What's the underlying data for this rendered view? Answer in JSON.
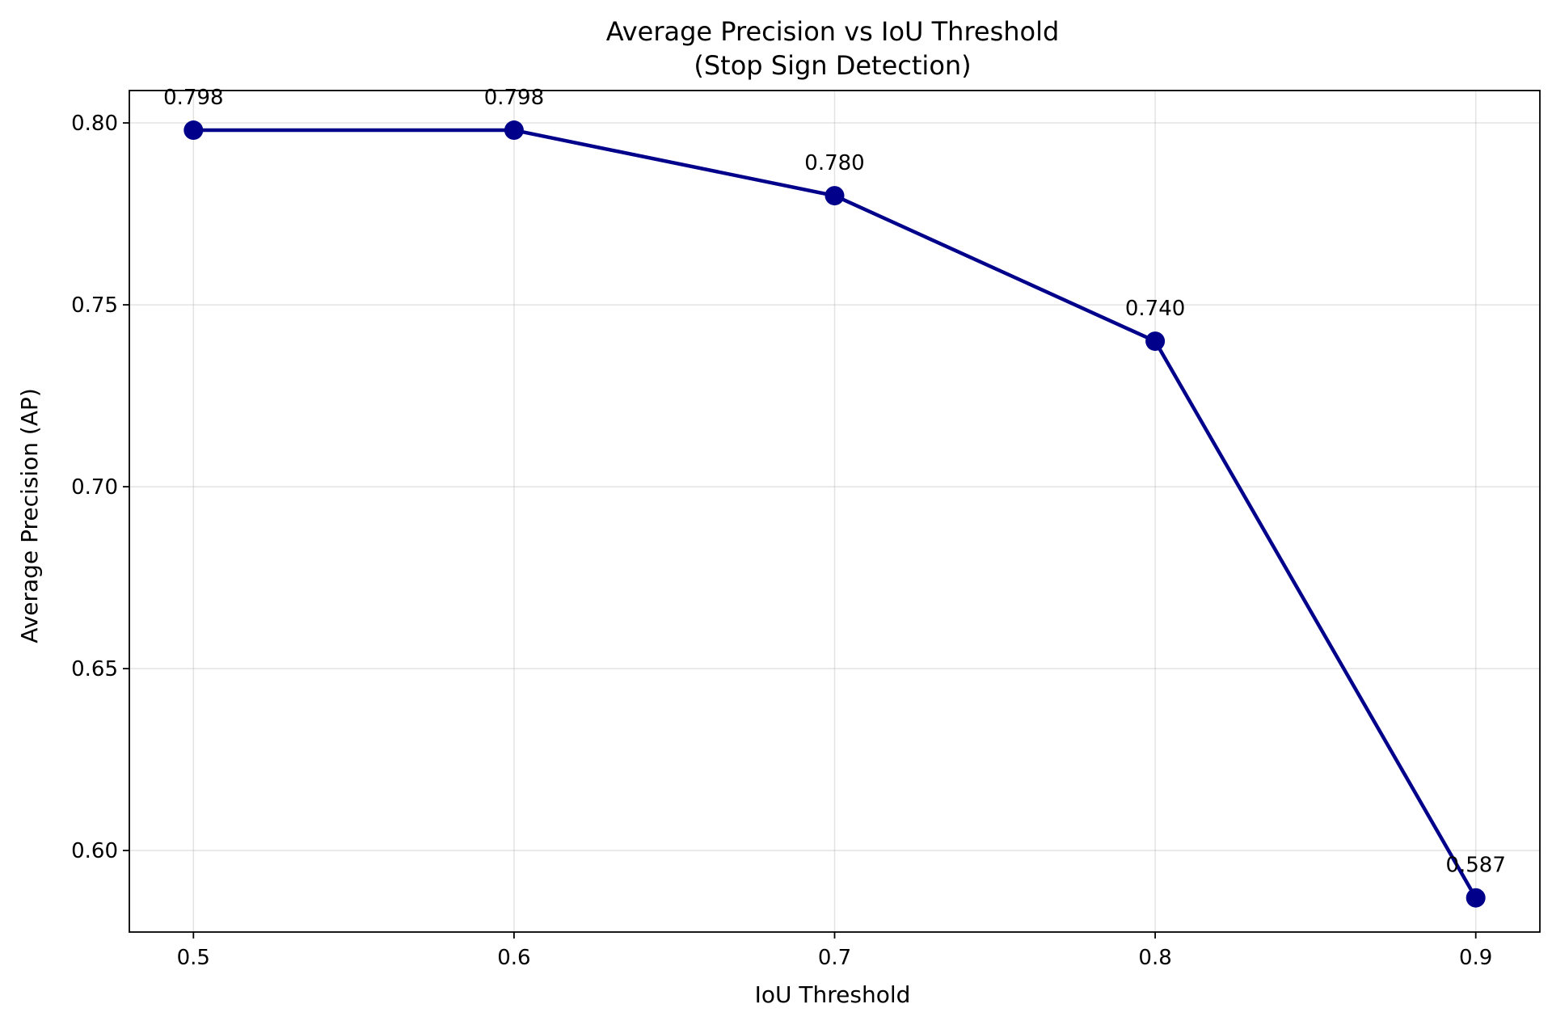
{
  "chart_data": {
    "type": "line",
    "title_line1": "Average Precision vs IoU Threshold",
    "title_line2": "(Stop Sign Detection)",
    "xlabel": "IoU Threshold",
    "ylabel": "Average Precision (AP)",
    "x": [
      0.5,
      0.6,
      0.7,
      0.8,
      0.9
    ],
    "xticks": [
      "0.5",
      "0.6",
      "0.7",
      "0.8",
      "0.9"
    ],
    "xlim": [
      0.48,
      0.92
    ],
    "ylim": [
      0.5776,
      0.8089
    ],
    "yticks": [
      "0.60",
      "0.65",
      "0.70",
      "0.75",
      "0.80"
    ],
    "ytick_values": [
      0.6,
      0.65,
      0.7,
      0.75,
      0.8
    ],
    "series": [
      {
        "values": [
          0.798,
          0.798,
          0.78,
          0.74,
          0.587
        ],
        "labels": [
          "0.798",
          "0.798",
          "0.780",
          "0.740",
          "0.587"
        ],
        "color": "#00008b"
      }
    ],
    "grid": true
  }
}
